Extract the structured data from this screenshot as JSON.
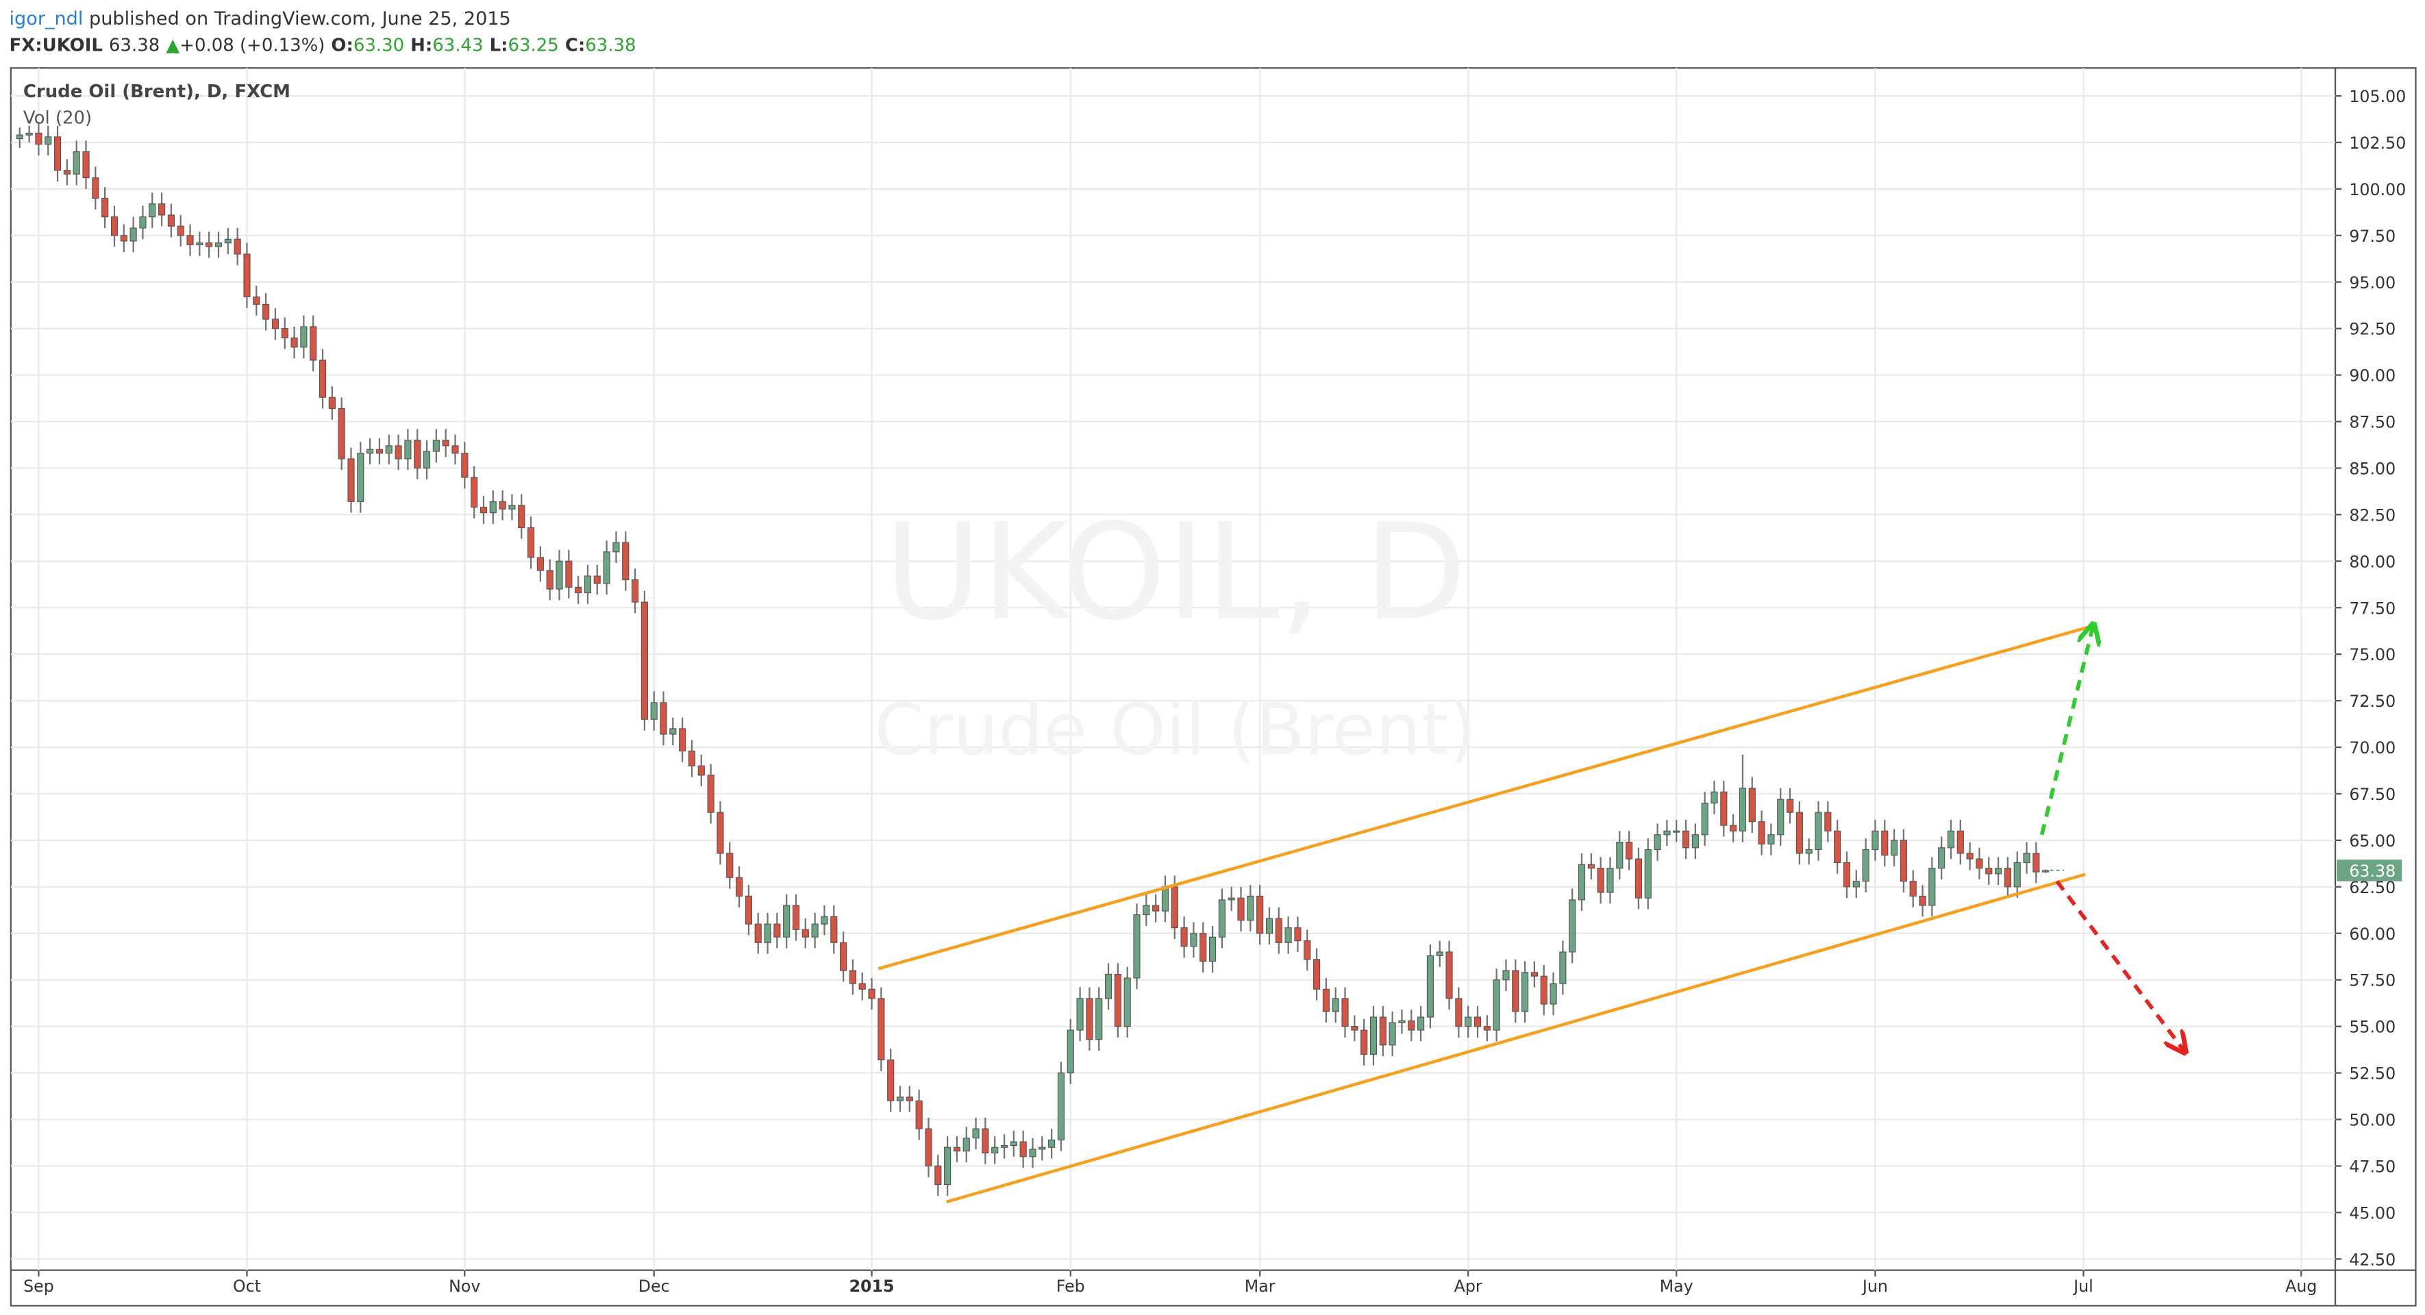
{
  "header": {
    "author": "igor_ndl",
    "published": "published on TradingView.com, June 25, 2015",
    "symbol": "FX:UKOIL",
    "last": "63.38",
    "arrow": "▲",
    "change": "+0.08 (+0.13%)",
    "o_label": "O:",
    "o": "63.30",
    "h_label": "H:",
    "h": "63.43",
    "l_label": "L:",
    "l": "63.25",
    "c_label": "C:",
    "c": "63.38"
  },
  "chart_data": {
    "type": "candlestick",
    "title": "Crude Oil (Brent), D, FXCM",
    "subtitle": "Vol (20)",
    "watermark": "UKOIL, D",
    "watermark_sub": "Crude Oil (Brent)",
    "last_price_label": "63.38",
    "up_color": "#6ba583",
    "down_color": "#d75442",
    "wick_color": "#737375",
    "grid": true,
    "xlim": [
      -0.94,
      244.6
    ],
    "xticks": [
      {
        "value": 2,
        "label": "Sep"
      },
      {
        "value": 24,
        "label": "Oct"
      },
      {
        "value": 47,
        "label": "Nov"
      },
      {
        "value": 67,
        "label": "Dec"
      },
      {
        "value": 90,
        "label": "2015"
      },
      {
        "value": 111,
        "label": "Feb"
      },
      {
        "value": 131,
        "label": "Mar"
      },
      {
        "value": 153,
        "label": "Apr"
      },
      {
        "value": 175,
        "label": "May"
      },
      {
        "value": 196,
        "label": "Jun"
      },
      {
        "value": 218,
        "label": "Jul"
      },
      {
        "value": 241,
        "label": "Aug"
      }
    ],
    "ylim": [
      41.9,
      106.5
    ],
    "yticks": [
      {
        "value": 42.5,
        "label": "42.50"
      },
      {
        "value": 45,
        "label": "45.00"
      },
      {
        "value": 47.5,
        "label": "47.50"
      },
      {
        "value": 50,
        "label": "50.00"
      },
      {
        "value": 52.5,
        "label": "52.50"
      },
      {
        "value": 55,
        "label": "55.00"
      },
      {
        "value": 57.5,
        "label": "57.50"
      },
      {
        "value": 60,
        "label": "60.00"
      },
      {
        "value": 62.5,
        "label": "62.50"
      },
      {
        "value": 65,
        "label": "65.00"
      },
      {
        "value": 67.5,
        "label": "67.50"
      },
      {
        "value": 70,
        "label": "70.00"
      },
      {
        "value": 72.5,
        "label": "72.50"
      },
      {
        "value": 75,
        "label": "75.00"
      },
      {
        "value": 77.5,
        "label": "77.50"
      },
      {
        "value": 80,
        "label": "80.00"
      },
      {
        "value": 82.5,
        "label": "82.50"
      },
      {
        "value": 85,
        "label": "85.00"
      },
      {
        "value": 87.5,
        "label": "87.50"
      },
      {
        "value": 90,
        "label": "90.00"
      },
      {
        "value": 92.5,
        "label": "92.50"
      },
      {
        "value": 95,
        "label": "95.00"
      },
      {
        "value": 97.5,
        "label": "97.50"
      },
      {
        "value": 100,
        "label": "100.00"
      },
      {
        "value": 102.5,
        "label": "102.50"
      },
      {
        "value": 105,
        "label": "105.00"
      }
    ],
    "close": [
      102.9,
      103.0,
      102.4,
      102.8,
      101.0,
      100.8,
      102.0,
      100.6,
      99.5,
      98.5,
      97.5,
      97.2,
      97.9,
      98.5,
      99.2,
      98.6,
      98.0,
      97.5,
      97.0,
      97.1,
      96.9,
      97.1,
      97.3,
      96.5,
      94.2,
      93.8,
      93.0,
      92.5,
      92.0,
      91.5,
      92.6,
      90.8,
      88.8,
      88.2,
      85.5,
      83.2,
      85.8,
      86.0,
      85.8,
      86.2,
      85.5,
      86.5,
      85.0,
      85.9,
      86.5,
      86.2,
      85.8,
      84.5,
      82.9,
      82.6,
      83.2,
      82.8,
      83.0,
      81.8,
      80.2,
      79.5,
      78.5,
      80.0,
      78.6,
      78.3,
      79.2,
      78.8,
      80.5,
      81.0,
      79.0,
      77.8,
      71.5,
      72.4,
      70.7,
      71.0,
      69.8,
      69.0,
      68.5,
      66.5,
      64.3,
      63.0,
      62.0,
      60.5,
      59.5,
      60.5,
      59.8,
      61.5,
      60.2,
      59.8,
      60.5,
      60.9,
      59.5,
      58.0,
      57.3,
      57.0,
      56.5,
      53.2,
      51.0,
      51.2,
      51.0,
      49.5,
      47.5,
      46.5,
      48.5,
      48.3,
      49.0,
      49.5,
      48.2,
      48.5,
      48.6,
      48.8,
      48.0,
      48.4,
      48.5,
      48.9,
      52.5,
      54.8,
      56.5,
      54.3,
      56.5,
      57.8,
      55.0,
      57.6,
      61.0,
      61.5,
      61.2,
      62.5,
      60.3,
      59.3,
      60.0,
      58.5,
      59.8,
      61.8,
      61.9,
      60.7,
      62.0,
      60.0,
      60.8,
      59.5,
      60.3,
      59.6,
      58.6,
      57.0,
      55.8,
      56.5,
      55.0,
      54.8,
      53.5,
      55.5,
      54.0,
      55.2,
      55.3,
      54.8,
      55.5,
      58.8,
      59.0,
      56.5,
      55.0,
      55.5,
      55.0,
      54.8,
      57.5,
      58.0,
      55.8,
      57.9,
      57.7,
      56.2,
      57.3,
      59.0,
      61.8,
      63.7,
      63.5,
      62.2,
      63.5,
      64.9,
      64.0,
      61.9,
      64.5,
      65.3,
      65.5,
      65.5,
      64.6,
      65.3,
      67.0,
      67.6,
      65.8,
      65.5,
      67.8,
      66.0,
      64.8,
      65.3,
      67.2,
      66.5,
      64.3,
      64.5,
      66.5,
      65.5,
      63.8,
      62.5,
      62.8,
      64.5,
      65.5,
      64.2,
      65.0,
      62.8,
      62.0,
      61.5,
      63.5,
      64.6,
      65.5,
      64.3,
      64.0,
      63.5,
      63.2,
      63.5,
      62.5,
      63.8,
      64.3,
      63.3,
      63.38
    ],
    "open": [
      102.7,
      102.9,
      103.0,
      102.4,
      102.8,
      101.0,
      100.8,
      102.0,
      100.6,
      99.5,
      98.5,
      97.5,
      97.2,
      97.9,
      98.5,
      99.2,
      98.6,
      98.0,
      97.5,
      97.0,
      97.1,
      96.9,
      97.1,
      97.3,
      96.5,
      94.2,
      93.8,
      93.0,
      92.5,
      92.0,
      91.5,
      92.6,
      90.8,
      88.8,
      88.2,
      85.5,
      83.2,
      85.8,
      86.0,
      85.8,
      86.2,
      85.5,
      86.5,
      85.0,
      85.9,
      86.5,
      86.2,
      85.8,
      84.5,
      82.9,
      82.6,
      83.2,
      82.8,
      83.0,
      81.8,
      80.2,
      79.5,
      78.5,
      80.0,
      78.6,
      78.3,
      79.2,
      78.8,
      80.5,
      81.0,
      79.0,
      77.8,
      71.5,
      72.4,
      70.7,
      71.0,
      69.8,
      69.0,
      68.5,
      66.5,
      64.3,
      63.0,
      62.0,
      60.5,
      59.5,
      60.5,
      59.8,
      61.5,
      60.2,
      59.8,
      60.5,
      60.9,
      59.5,
      58.0,
      57.3,
      57.0,
      56.5,
      53.2,
      51.0,
      51.2,
      51.0,
      49.5,
      47.5,
      46.5,
      48.5,
      48.3,
      49.0,
      49.5,
      48.2,
      48.5,
      48.6,
      48.8,
      48.0,
      48.4,
      48.5,
      48.9,
      52.5,
      54.8,
      56.5,
      54.3,
      56.5,
      57.8,
      55.0,
      57.6,
      61.0,
      61.5,
      61.2,
      62.5,
      60.3,
      59.3,
      60.0,
      58.5,
      59.8,
      61.8,
      61.9,
      60.7,
      62.0,
      60.0,
      60.8,
      59.5,
      60.3,
      59.6,
      58.6,
      57.0,
      55.8,
      56.5,
      55.0,
      54.8,
      53.5,
      55.5,
      54.0,
      55.2,
      55.3,
      54.8,
      55.5,
      58.8,
      59.0,
      56.5,
      55.0,
      55.5,
      55.0,
      54.8,
      57.5,
      58.0,
      55.8,
      57.9,
      57.7,
      56.2,
      57.3,
      59.0,
      61.8,
      63.7,
      63.5,
      62.2,
      63.5,
      64.9,
      64.0,
      61.9,
      64.5,
      65.3,
      65.5,
      65.5,
      64.6,
      65.3,
      67.0,
      67.6,
      65.8,
      65.5,
      67.8,
      66.0,
      64.8,
      65.3,
      67.2,
      66.5,
      64.3,
      64.5,
      66.5,
      65.5,
      63.8,
      62.5,
      62.8,
      64.5,
      65.5,
      64.2,
      65.0,
      62.8,
      62.0,
      61.5,
      63.5,
      64.6,
      65.5,
      64.3,
      64.0,
      63.5,
      63.2,
      63.5,
      62.5,
      63.8,
      64.3,
      63.3
    ],
    "high": [
      103.3,
      103.4,
      103.6,
      103.4,
      103.4,
      101.6,
      102.6,
      102.6,
      101.2,
      100.1,
      99.1,
      98.1,
      98.5,
      99.1,
      99.8,
      99.8,
      99.2,
      98.6,
      98.1,
      97.7,
      97.7,
      97.7,
      97.9,
      97.9,
      97.1,
      94.8,
      94.4,
      93.6,
      93.1,
      92.6,
      93.2,
      93.2,
      91.4,
      89.4,
      88.8,
      86.1,
      86.4,
      86.6,
      86.6,
      86.8,
      86.8,
      87.1,
      87.1,
      86.5,
      87.1,
      87.1,
      86.8,
      86.4,
      85.1,
      83.5,
      83.8,
      83.8,
      83.6,
      83.6,
      82.4,
      80.8,
      80.1,
      80.6,
      80.6,
      79.2,
      79.8,
      79.8,
      81.1,
      81.6,
      81.6,
      79.6,
      78.4,
      73.0,
      73.0,
      71.6,
      71.6,
      70.4,
      69.6,
      69.1,
      67.1,
      64.9,
      63.6,
      62.6,
      61.1,
      61.1,
      61.1,
      62.1,
      62.1,
      60.8,
      61.1,
      61.5,
      61.5,
      60.1,
      58.6,
      57.9,
      57.6,
      57.1,
      53.8,
      51.8,
      51.8,
      51.6,
      50.1,
      48.1,
      49.1,
      49.1,
      49.6,
      50.1,
      50.1,
      49.1,
      49.2,
      49.4,
      49.4,
      49.0,
      49.1,
      49.5,
      53.1,
      55.4,
      57.1,
      57.1,
      57.1,
      58.4,
      58.4,
      58.2,
      61.6,
      62.1,
      62.1,
      63.1,
      63.1,
      60.9,
      60.6,
      60.6,
      60.4,
      62.4,
      62.5,
      62.5,
      62.6,
      62.6,
      61.4,
      61.4,
      60.9,
      60.9,
      60.2,
      59.2,
      57.6,
      57.1,
      57.1,
      55.6,
      55.4,
      56.1,
      56.1,
      55.8,
      55.9,
      55.9,
      56.1,
      59.4,
      59.6,
      59.6,
      57.1,
      56.1,
      56.1,
      55.6,
      58.1,
      58.6,
      58.6,
      58.5,
      58.5,
      58.3,
      57.9,
      59.6,
      62.4,
      64.3,
      64.3,
      64.1,
      64.1,
      65.5,
      65.5,
      64.6,
      65.1,
      65.9,
      66.1,
      66.1,
      66.1,
      65.9,
      67.6,
      68.2,
      68.2,
      66.4,
      69.6,
      68.4,
      66.6,
      65.9,
      67.8,
      67.8,
      67.1,
      65.1,
      67.1,
      67.1,
      66.1,
      64.4,
      63.4,
      65.1,
      66.1,
      66.1,
      65.6,
      65.6,
      63.4,
      62.6,
      64.1,
      65.2,
      66.1,
      66.1,
      64.9,
      64.6,
      64.1,
      64.1,
      64.1,
      64.4,
      64.9,
      64.9,
      63.43
    ],
    "low": [
      102.2,
      102.5,
      101.8,
      101.8,
      100.4,
      100.2,
      100.2,
      100.0,
      98.9,
      97.9,
      96.9,
      96.6,
      96.6,
      97.3,
      97.9,
      98.0,
      97.4,
      96.9,
      96.4,
      96.4,
      96.3,
      96.3,
      96.5,
      95.9,
      93.6,
      93.2,
      92.4,
      91.9,
      91.4,
      90.9,
      90.9,
      90.2,
      88.2,
      87.6,
      84.9,
      82.6,
      82.6,
      85.2,
      85.2,
      85.2,
      84.9,
      84.9,
      84.4,
      84.4,
      85.3,
      85.6,
      85.2,
      83.9,
      82.3,
      82.0,
      82.0,
      82.2,
      82.2,
      81.2,
      79.6,
      78.9,
      77.9,
      77.9,
      78.0,
      77.7,
      77.7,
      78.2,
      78.2,
      79.9,
      78.4,
      77.2,
      70.9,
      70.9,
      70.1,
      70.1,
      69.2,
      68.4,
      67.9,
      65.9,
      63.7,
      62.4,
      61.4,
      59.9,
      58.9,
      58.9,
      59.2,
      59.2,
      59.6,
      59.2,
      59.2,
      59.9,
      58.9,
      57.4,
      56.7,
      56.4,
      55.9,
      52.6,
      50.4,
      50.4,
      50.4,
      48.9,
      46.9,
      45.9,
      45.9,
      47.7,
      47.7,
      48.4,
      47.6,
      47.6,
      47.9,
      48.0,
      47.4,
      47.4,
      47.8,
      47.9,
      48.3,
      51.9,
      54.2,
      53.7,
      53.7,
      55.9,
      54.4,
      54.4,
      57.0,
      60.4,
      60.6,
      60.6,
      59.7,
      58.7,
      58.7,
      57.9,
      57.9,
      59.2,
      61.2,
      60.1,
      60.1,
      59.4,
      59.4,
      58.9,
      58.9,
      59.0,
      58.0,
      56.4,
      55.2,
      55.2,
      54.4,
      54.2,
      52.9,
      52.9,
      53.4,
      53.4,
      54.6,
      54.2,
      54.2,
      54.9,
      58.2,
      55.9,
      54.4,
      54.4,
      54.4,
      54.2,
      54.2,
      56.9,
      55.2,
      55.2,
      57.1,
      55.6,
      55.6,
      56.7,
      58.4,
      61.2,
      62.9,
      61.6,
      61.6,
      62.9,
      63.4,
      61.3,
      61.3,
      63.9,
      64.7,
      64.9,
      64.0,
      64.0,
      64.7,
      66.4,
      65.2,
      64.9,
      64.9,
      65.4,
      64.2,
      64.2,
      64.7,
      65.9,
      63.7,
      63.7,
      63.9,
      64.9,
      63.2,
      61.9,
      61.9,
      62.2,
      63.9,
      63.6,
      63.6,
      62.2,
      61.4,
      60.9,
      60.9,
      62.9,
      64.0,
      63.7,
      63.4,
      62.9,
      62.6,
      62.6,
      61.9,
      61.9,
      63.2,
      62.7,
      63.25
    ],
    "trendlines": [
      {
        "color": "#f7a01f",
        "dashed": false,
        "points": [
          [
            90.7,
            58.1
          ],
          [
            218.5,
            76.45
          ]
        ]
      },
      {
        "color": "#f7a01f",
        "dashed": false,
        "points": [
          [
            97.9,
            45.57
          ],
          [
            218.2,
            63.17
          ]
        ]
      },
      {
        "color": "#2ecc2e",
        "dashed": true,
        "points": [
          [
            213.6,
            65.3
          ],
          [
            219.0,
            76.5
          ]
        ]
      },
      {
        "color": "#e5241f",
        "dashed": true,
        "points": [
          [
            215.2,
            62.8
          ],
          [
            228.6,
            53.7
          ]
        ]
      }
    ]
  }
}
